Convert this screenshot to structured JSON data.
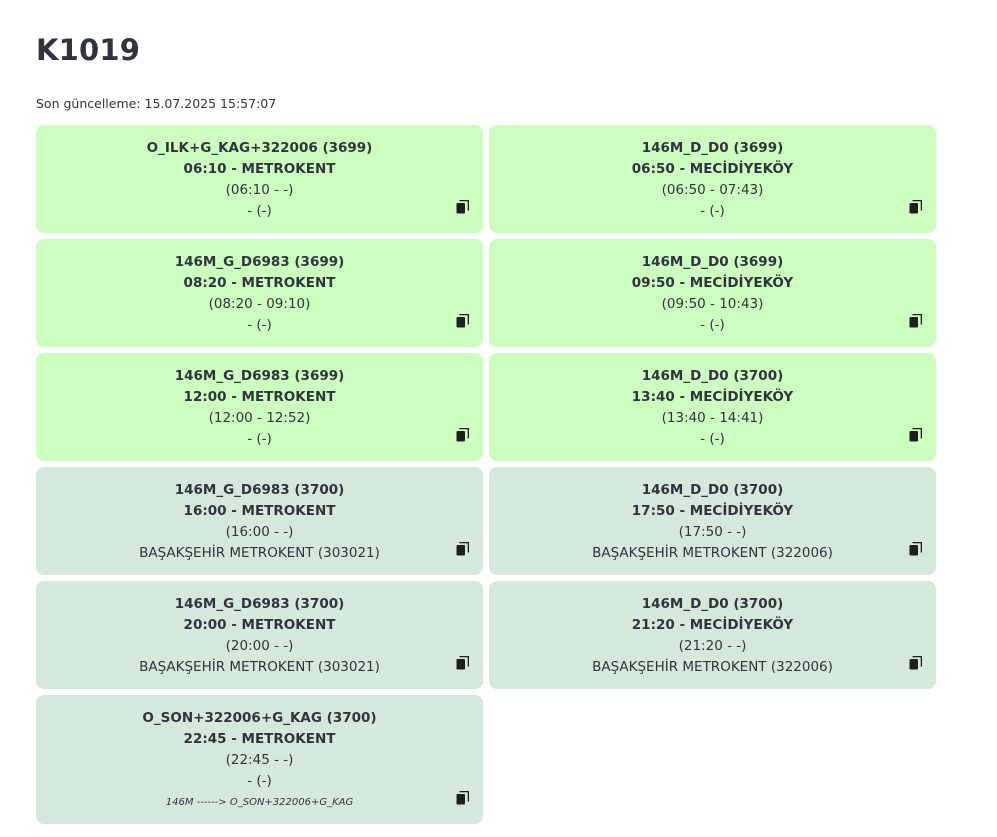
{
  "title": "K1019",
  "updated": "Son güncelleme: 15.07.2025 15:57:07",
  "cards": [
    {
      "state": "active",
      "l1": "O_ILK+G_KAG+322006 (3699)",
      "l2": "06:10 - METROKENT",
      "l3": "(06:10 - -)",
      "l4": "- (-)",
      "note": "",
      "icon": "copy-icon"
    },
    {
      "state": "active",
      "l1": "146M_D_D0 (3699)",
      "l2": "06:50 - MECİDİYEKÖY",
      "l3": "(06:50 - 07:43)",
      "l4": "- (-)",
      "note": "",
      "icon": "copy-icon"
    },
    {
      "state": "active",
      "l1": "146M_G_D6983 (3699)",
      "l2": "08:20 - METROKENT",
      "l3": "(08:20 - 09:10)",
      "l4": "- (-)",
      "note": "",
      "icon": "copy-icon"
    },
    {
      "state": "active",
      "l1": "146M_D_D0 (3699)",
      "l2": "09:50 - MECİDİYEKÖY",
      "l3": "(09:50 - 10:43)",
      "l4": "- (-)",
      "note": "",
      "icon": "copy-icon"
    },
    {
      "state": "active",
      "l1": "146M_G_D6983 (3699)",
      "l2": "12:00 - METROKENT",
      "l3": "(12:00 - 12:52)",
      "l4": "- (-)",
      "note": "",
      "icon": "copy-icon"
    },
    {
      "state": "active",
      "l1": "146M_D_D0 (3700)",
      "l2": "13:40 - MECİDİYEKÖY",
      "l3": "(13:40 - 14:41)",
      "l4": "- (-)",
      "note": "",
      "icon": "copy-icon"
    },
    {
      "state": "past",
      "l1": "146M_G_D6983 (3700)",
      "l2": "16:00 - METROKENT",
      "l3": "(16:00 - -)",
      "l4": "BAŞAKŞEHİR METROKENT (303021)",
      "note": "",
      "icon": "copy-icon"
    },
    {
      "state": "past",
      "l1": "146M_D_D0 (3700)",
      "l2": "17:50 - MECİDİYEKÖY",
      "l3": "(17:50 - -)",
      "l4": "BAŞAKŞEHİR METROKENT (322006)",
      "note": "",
      "icon": "copy-icon"
    },
    {
      "state": "past",
      "l1": "146M_G_D6983 (3700)",
      "l2": "20:00 - METROKENT",
      "l3": "(20:00 - -)",
      "l4": "BAŞAKŞEHİR METROKENT (303021)",
      "note": "",
      "icon": "copy-icon"
    },
    {
      "state": "past",
      "l1": "146M_D_D0 (3700)",
      "l2": "21:20 - MECİDİYEKÖY",
      "l3": "(21:20 - -)",
      "l4": "BAŞAKŞEHİR METROKENT (322006)",
      "note": "",
      "icon": "copy-icon"
    },
    {
      "state": "past",
      "l1": "O_SON+322006+G_KAG (3700)",
      "l2": "22:45 - METROKENT",
      "l3": "(22:45 - -)",
      "l4": "- (-)",
      "note": "146M ------> O_SON+322006+G_KAG",
      "icon": "copy-icon"
    }
  ],
  "colors": {
    "active_bg": "#ccffbf",
    "past_bg": "#d4e9dc",
    "text": "#31333f"
  }
}
